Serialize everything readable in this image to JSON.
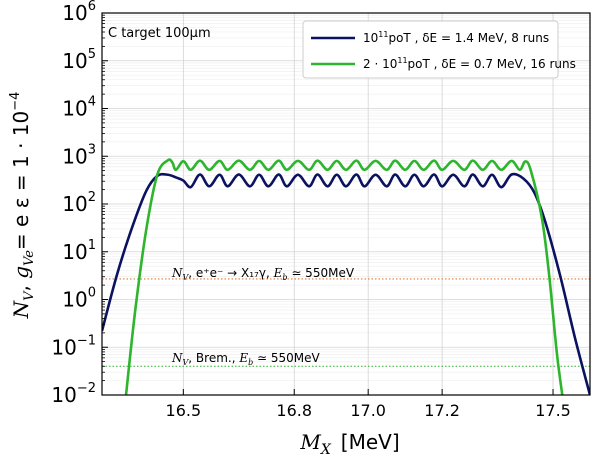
{
  "chart_data": {
    "type": "line",
    "corner_note": "C target 100μm",
    "xlabel_var": "M",
    "xlabel_sub": "X",
    "xlabel_unit": "[MeV]",
    "ylabel_main": "N",
    "ylabel_main_sub": "V",
    "ylabel_coupling": "g",
    "ylabel_coupling_sub": "Ve",
    "ylabel_expr": "= e ε = 1 · 10",
    "ylabel_exp": "−4",
    "xlim": [
      16.28,
      17.6
    ],
    "ylim_log10": [
      -2,
      6
    ],
    "yscale": "log",
    "x_ticks": [
      {
        "value": 16.5,
        "label": "16.5"
      },
      {
        "value": 16.8,
        "label": "16.8"
      },
      {
        "value": 17.0,
        "label": "17.0"
      },
      {
        "value": 17.2,
        "label": "17.2"
      },
      {
        "value": 17.5,
        "label": "17.5"
      }
    ],
    "y_ticks": [
      {
        "exp": -2,
        "base": "10",
        "sup": "−2"
      },
      {
        "exp": -1,
        "base": "10",
        "sup": "−1"
      },
      {
        "exp": 0,
        "base": "10",
        "sup": "0"
      },
      {
        "exp": 1,
        "base": "10",
        "sup": "1"
      },
      {
        "exp": 2,
        "base": "10",
        "sup": "2"
      },
      {
        "exp": 3,
        "base": "10",
        "sup": "3"
      },
      {
        "exp": 4,
        "base": "10",
        "sup": "4"
      },
      {
        "exp": 5,
        "base": "10",
        "sup": "5"
      },
      {
        "exp": 6,
        "base": "10",
        "sup": "6"
      }
    ],
    "grid": true,
    "legend_position": "top-right",
    "series": [
      {
        "legend_main": "10",
        "legend_sup": "11",
        "legend_rest": "poT , δE = 1.4 MeV, 8 runs",
        "color": "#0b1260",
        "points": [
          [
            16.28,
            0.22
          ],
          [
            16.32,
            3.2
          ],
          [
            16.36,
            30
          ],
          [
            16.4,
            190
          ],
          [
            16.43,
            390
          ],
          [
            16.458,
            410
          ],
          [
            16.48,
            360
          ],
          [
            16.5,
            310
          ],
          [
            16.52,
            225
          ],
          [
            16.545,
            415
          ],
          [
            16.57,
            235
          ],
          [
            16.598,
            410
          ],
          [
            16.62,
            235
          ],
          [
            16.65,
            415
          ],
          [
            16.68,
            235
          ],
          [
            16.705,
            410
          ],
          [
            16.73,
            235
          ],
          [
            16.758,
            415
          ],
          [
            16.78,
            235
          ],
          [
            16.81,
            410
          ],
          [
            16.84,
            235
          ],
          [
            16.863,
            415
          ],
          [
            16.89,
            235
          ],
          [
            16.915,
            410
          ],
          [
            16.94,
            235
          ],
          [
            16.968,
            415
          ],
          [
            16.99,
            235
          ],
          [
            17.02,
            410
          ],
          [
            17.05,
            235
          ],
          [
            17.073,
            415
          ],
          [
            17.1,
            235
          ],
          [
            17.125,
            410
          ],
          [
            17.15,
            235
          ],
          [
            17.178,
            415
          ],
          [
            17.2,
            235
          ],
          [
            17.23,
            410
          ],
          [
            17.26,
            235
          ],
          [
            17.283,
            415
          ],
          [
            17.31,
            235
          ],
          [
            17.335,
            410
          ],
          [
            17.36,
            225
          ],
          [
            17.388,
            415
          ],
          [
            17.42,
            340
          ],
          [
            17.45,
            170
          ],
          [
            17.48,
            40
          ],
          [
            17.52,
            3.0
          ],
          [
            17.56,
            0.15
          ],
          [
            17.6,
            0.01
          ]
        ]
      },
      {
        "legend_main": "2 · 10",
        "legend_sup": "11",
        "legend_rest": "poT , δE = 0.7 MeV, 16 runs",
        "color": "#2db52d",
        "points": [
          [
            16.345,
            0.01
          ],
          [
            16.37,
            0.6
          ],
          [
            16.4,
            30
          ],
          [
            16.43,
            420
          ],
          [
            16.458,
            820
          ],
          [
            16.47,
            750
          ],
          [
            16.48,
            520
          ],
          [
            16.5,
            790
          ],
          [
            16.52,
            520
          ],
          [
            16.545,
            810
          ],
          [
            16.57,
            520
          ],
          [
            16.598,
            800
          ],
          [
            16.62,
            520
          ],
          [
            16.65,
            810
          ],
          [
            16.68,
            520
          ],
          [
            16.705,
            800
          ],
          [
            16.73,
            520
          ],
          [
            16.758,
            810
          ],
          [
            16.78,
            520
          ],
          [
            16.81,
            800
          ],
          [
            16.84,
            520
          ],
          [
            16.863,
            810
          ],
          [
            16.89,
            520
          ],
          [
            16.915,
            800
          ],
          [
            16.94,
            520
          ],
          [
            16.968,
            810
          ],
          [
            16.99,
            520
          ],
          [
            17.02,
            800
          ],
          [
            17.05,
            520
          ],
          [
            17.073,
            810
          ],
          [
            17.1,
            520
          ],
          [
            17.125,
            800
          ],
          [
            17.15,
            520
          ],
          [
            17.178,
            810
          ],
          [
            17.2,
            520
          ],
          [
            17.23,
            800
          ],
          [
            17.26,
            520
          ],
          [
            17.283,
            810
          ],
          [
            17.31,
            520
          ],
          [
            17.335,
            800
          ],
          [
            17.36,
            520
          ],
          [
            17.388,
            800
          ],
          [
            17.41,
            520
          ],
          [
            17.425,
            780
          ],
          [
            17.44,
            500
          ],
          [
            17.47,
            50
          ],
          [
            17.49,
            3.0
          ],
          [
            17.51,
            0.08
          ],
          [
            17.525,
            0.01
          ]
        ]
      }
    ],
    "reference_lines": [
      {
        "value": 2.7,
        "color": "#e07a3a",
        "label_n": "N",
        "label_n_sub": "V",
        "label_text": ", e⁺e⁻ → X₁₇γ, ",
        "label_e": "E",
        "label_e_sub": "b",
        "label_tail": " ≃ 550MeV"
      },
      {
        "value": 0.04,
        "color": "#2db52d",
        "label_n": "N",
        "label_n_sub": "V",
        "label_text": ", Brem., ",
        "label_e": "E",
        "label_e_sub": "b",
        "label_tail": " ≃ 550MeV"
      }
    ]
  }
}
